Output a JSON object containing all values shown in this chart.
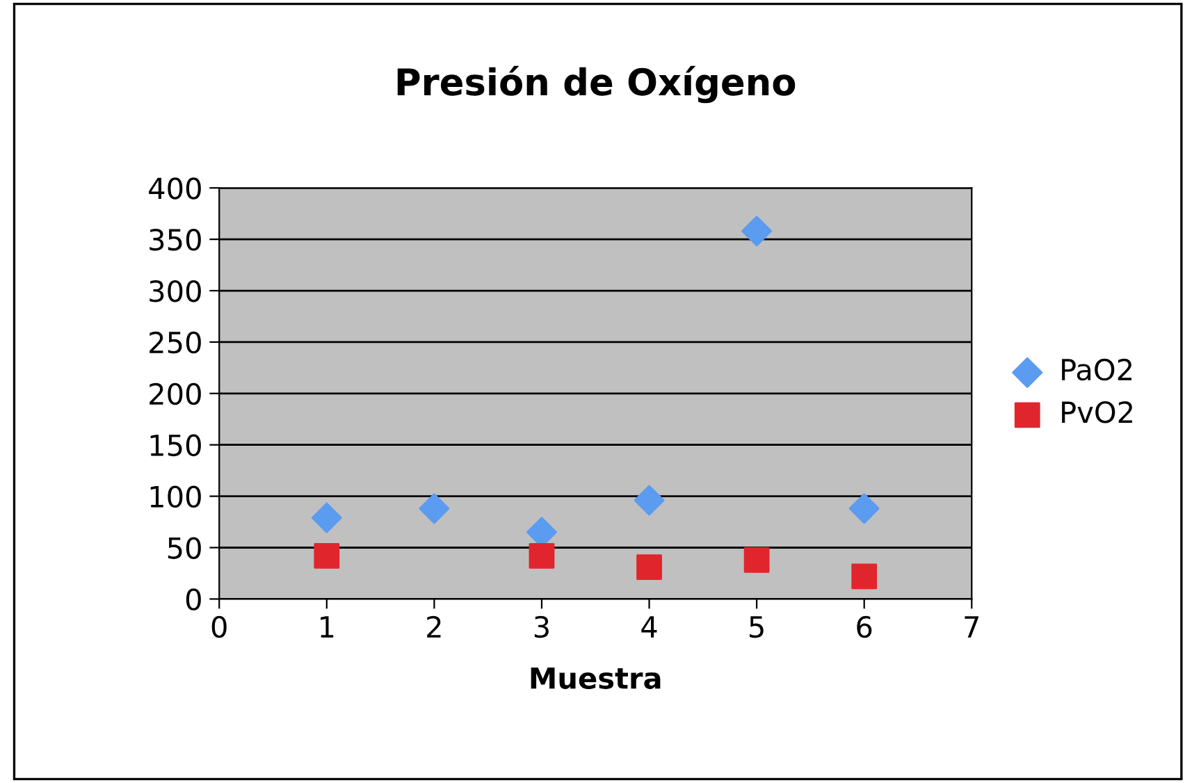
{
  "chart_data": {
    "type": "scatter",
    "title": "Presión de Oxígeno",
    "xlabel": "Muestra",
    "x": [
      1,
      2,
      3,
      4,
      5,
      6
    ],
    "series": [
      {
        "name": "PaO2",
        "color": "#5b9bf0",
        "marker": "diamond",
        "values": [
          79,
          88,
          65,
          96,
          358,
          88
        ]
      },
      {
        "name": "PvO2",
        "color": "#e0262c",
        "marker": "square",
        "values": [
          42,
          null,
          42,
          31,
          38,
          22
        ]
      }
    ],
    "xlim": [
      0,
      7
    ],
    "xticks": [
      0,
      1,
      2,
      3,
      4,
      5,
      6,
      7
    ],
    "ylim": [
      0,
      400
    ],
    "yticks": [
      0,
      50,
      100,
      150,
      200,
      250,
      300,
      350,
      400
    ],
    "grid": "y",
    "legend": "right"
  }
}
